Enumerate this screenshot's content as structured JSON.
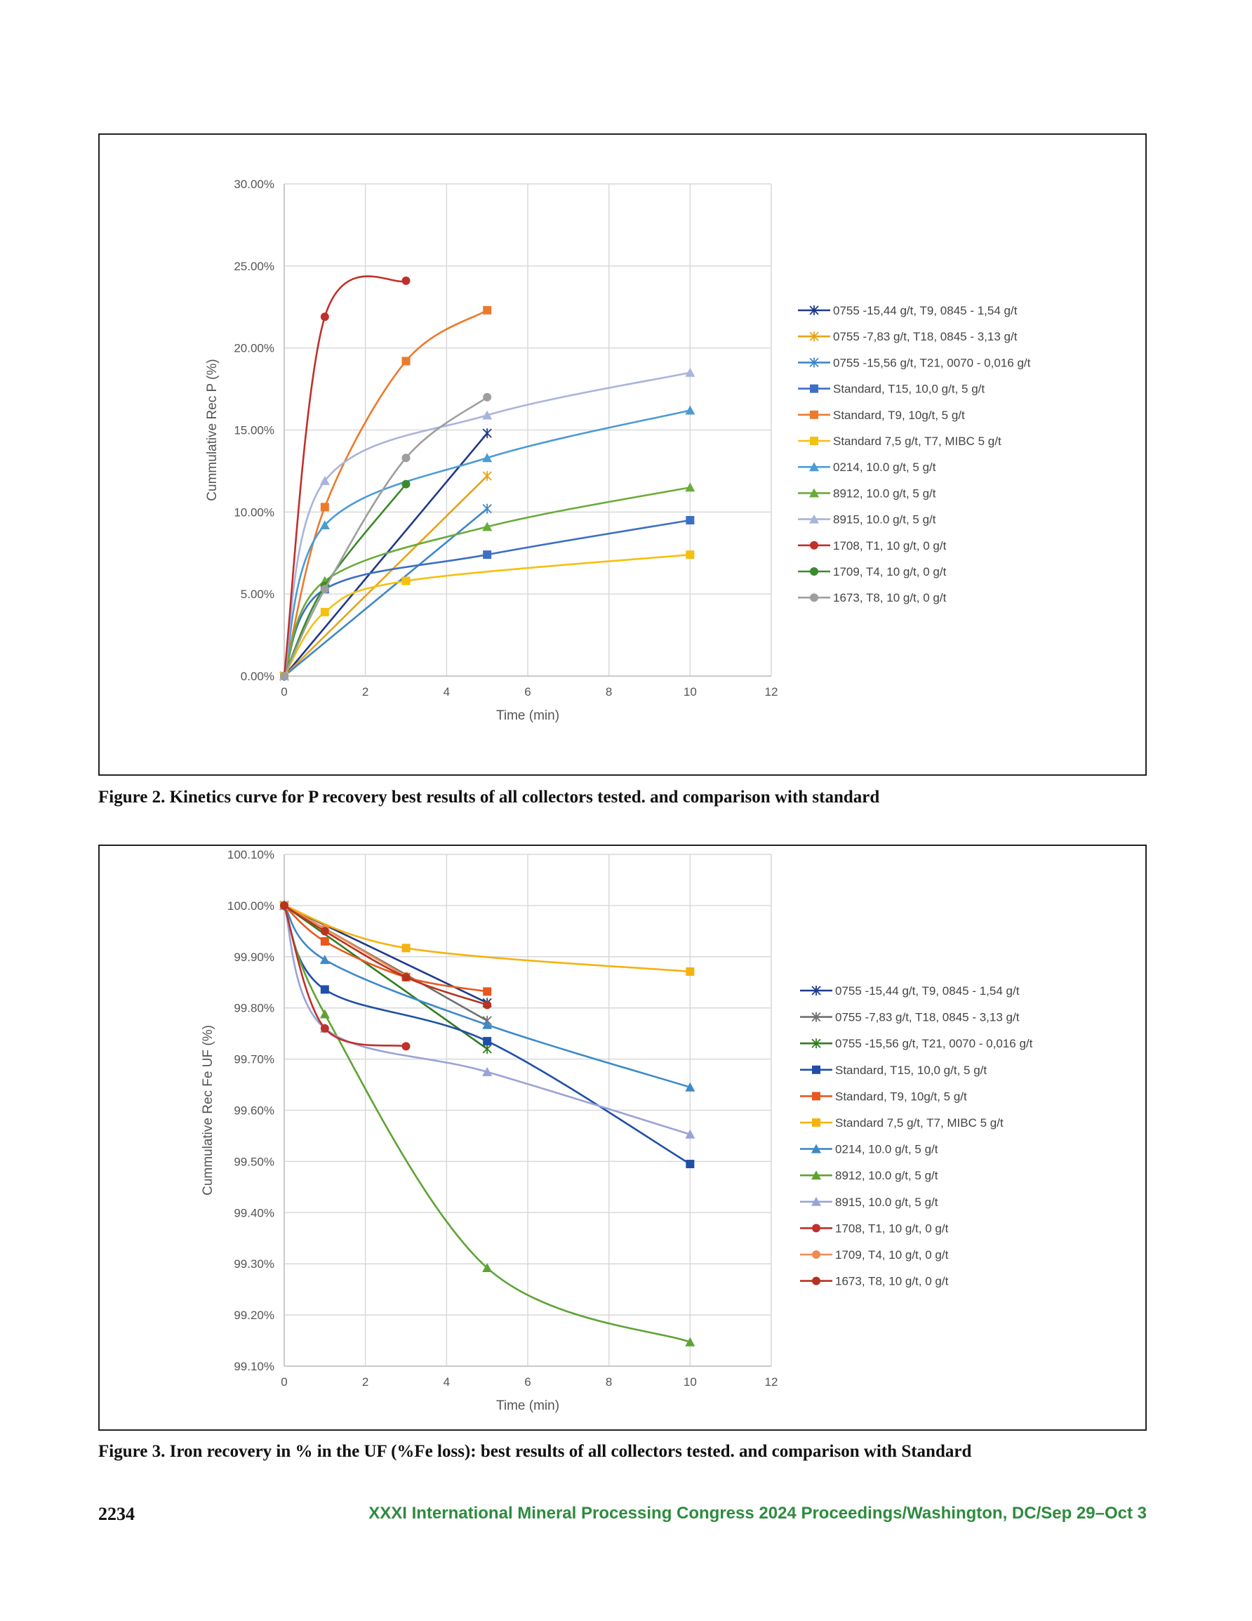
{
  "captions": {
    "fig2": "Figure 2. Kinetics curve for P recovery best results of all collectors tested. and comparison with standard",
    "fig3": "Figure 3. Iron recovery in % in the UF (%Fe loss): best results of all collectors tested. and comparison with Standard"
  },
  "footer": {
    "page_number": "2234",
    "conference": "XXXI International Mineral Processing Congress 2024 Proceedings/Washington, DC/Sep 29–Oct 3"
  },
  "chart_data": [
    {
      "type": "line",
      "xlabel": "Time (min)",
      "ylabel": "Cummulative Rec P (%)",
      "xlim": [
        0,
        12
      ],
      "ylim": [
        0,
        30
      ],
      "x_ticks": [
        0,
        2,
        4,
        6,
        8,
        10,
        12
      ],
      "y_ticks": [
        0,
        5,
        10,
        15,
        20,
        25,
        30
      ],
      "y_tick_labels": [
        "0.00%",
        "5.00%",
        "10.00%",
        "15.00%",
        "20.00%",
        "25.00%",
        "30.00%"
      ],
      "grid": true,
      "legend_position": "right",
      "series": [
        {
          "name": "0755 -15,44 g/t, T9,  0845 - 1,54 g/t",
          "color": "#1f3a8a",
          "marker": "star",
          "smooth": false,
          "points": [
            [
              0,
              0
            ],
            [
              5,
              14.8
            ]
          ]
        },
        {
          "name": "0755 -7,83 g/t, T18,  0845 - 3,13 g/t",
          "color": "#e8a317",
          "marker": "star",
          "smooth": false,
          "points": [
            [
              0,
              0
            ],
            [
              5,
              12.2
            ]
          ]
        },
        {
          "name": "0755 -15,56 g/t, T21,  0070 - 0,016 g/t",
          "color": "#3f87c8",
          "marker": "star",
          "smooth": false,
          "points": [
            [
              0,
              0
            ],
            [
              5,
              10.2
            ]
          ]
        },
        {
          "name": "Standard, T15, 10,0 g/t, 5 g/t",
          "color": "#3d6fc4",
          "marker": "square",
          "smooth": true,
          "points": [
            [
              0,
              0
            ],
            [
              1,
              5.3
            ],
            [
              5,
              7.4
            ],
            [
              10,
              9.5
            ]
          ]
        },
        {
          "name": "Standard,  T9, 10g/t, 5 g/t",
          "color": "#ec7a2c",
          "marker": "square",
          "smooth": true,
          "points": [
            [
              0,
              0
            ],
            [
              1,
              10.3
            ],
            [
              3,
              19.2
            ],
            [
              5,
              22.3
            ]
          ]
        },
        {
          "name": "Standard 7,5 g/t, T7,  MIBC 5 g/t",
          "color": "#f5c00f",
          "marker": "square",
          "smooth": true,
          "points": [
            [
              0,
              0
            ],
            [
              1,
              3.9
            ],
            [
              3,
              5.8
            ],
            [
              10,
              7.4
            ]
          ]
        },
        {
          "name": "0214, 10.0 g/t, 5 g/t",
          "color": "#4b9bd6",
          "marker": "triangle",
          "smooth": true,
          "points": [
            [
              0,
              0
            ],
            [
              1,
              9.2
            ],
            [
              5,
              13.3
            ],
            [
              10,
              16.2
            ]
          ]
        },
        {
          "name": "8912, 10.0 g/t, 5 g/t",
          "color": "#6aab3a",
          "marker": "triangle",
          "smooth": true,
          "points": [
            [
              0,
              0
            ],
            [
              1,
              5.8
            ],
            [
              5,
              9.1
            ],
            [
              10,
              11.5
            ]
          ]
        },
        {
          "name": "8915, 10.0 g/t, 5 g/t",
          "color": "#a9b4dc",
          "marker": "triangle",
          "smooth": true,
          "points": [
            [
              0,
              0
            ],
            [
              1,
              11.9
            ],
            [
              5,
              15.9
            ],
            [
              10,
              18.5
            ]
          ]
        },
        {
          "name": "1708, T1, 10 g/t, 0 g/t",
          "color": "#c0302c",
          "marker": "circle",
          "smooth": true,
          "points": [
            [
              0,
              0
            ],
            [
              1,
              21.9
            ],
            [
              3,
              24.1
            ]
          ]
        },
        {
          "name": "1709, T4, 10 g/t, 0 g/t",
          "color": "#3c8a2c",
          "marker": "circle",
          "smooth": true,
          "points": [
            [
              0,
              0
            ],
            [
              1,
              5.5
            ],
            [
              3,
              11.7
            ]
          ]
        },
        {
          "name": "1673, T8, 10 g/t, 0 g/t",
          "color": "#9e9e9e",
          "marker": "circle",
          "smooth": true,
          "points": [
            [
              0,
              0
            ],
            [
              1,
              5.3
            ],
            [
              3,
              13.3
            ],
            [
              5,
              17.0
            ]
          ]
        }
      ]
    },
    {
      "type": "line",
      "xlabel": "Time (min)",
      "ylabel": "Cummulative Rec Fe UF (%)",
      "xlim": [
        0,
        12
      ],
      "ylim": [
        99.1,
        100.1
      ],
      "x_ticks": [
        0,
        2,
        4,
        6,
        8,
        10,
        12
      ],
      "y_ticks": [
        99.1,
        99.2,
        99.3,
        99.4,
        99.5,
        99.6,
        99.7,
        99.8,
        99.9,
        100.0,
        100.1
      ],
      "y_tick_labels": [
        "99.10%",
        "99.20%",
        "99.30%",
        "99.40%",
        "99.50%",
        "99.60%",
        "99.70%",
        "99.80%",
        "99.90%",
        "100.00%",
        "100.10%"
      ],
      "grid": true,
      "legend_position": "right",
      "series": [
        {
          "name": "0755 -15,44 g/t, T9,  0845 - 1,54 g/t",
          "color": "#1f3a8a",
          "marker": "star",
          "smooth": false,
          "points": [
            [
              0,
              100.0
            ],
            [
              5,
              99.81
            ]
          ]
        },
        {
          "name": "0755 -7,83 g/t, T18,  0845 - 3,13 g/t",
          "color": "#707070",
          "marker": "star",
          "smooth": false,
          "points": [
            [
              0,
              100.0
            ],
            [
              5,
              99.775
            ]
          ]
        },
        {
          "name": "0755 -15,56 g/t, T21,  0070 - 0,016 g/t",
          "color": "#2f7d1f",
          "marker": "star",
          "smooth": false,
          "points": [
            [
              0,
              100.0
            ],
            [
              5,
              99.72
            ]
          ]
        },
        {
          "name": "Standard, T15, 10,0 g/t, 5 g/t",
          "color": "#1f4fa8",
          "marker": "square",
          "smooth": true,
          "points": [
            [
              0,
              100.0
            ],
            [
              1,
              99.836
            ],
            [
              5,
              99.735
            ],
            [
              10,
              99.495
            ]
          ]
        },
        {
          "name": "Standard,  T9, 10g/t, 5 g/t",
          "color": "#e8571f",
          "marker": "square",
          "smooth": true,
          "points": [
            [
              0,
              100.0
            ],
            [
              1,
              99.93
            ],
            [
              3,
              99.86
            ],
            [
              5,
              99.832
            ]
          ]
        },
        {
          "name": "Standard 7,5 g/t, T7,  MIBC 5 g/t",
          "color": "#f5b20f",
          "marker": "square",
          "smooth": true,
          "points": [
            [
              0,
              100.0
            ],
            [
              3,
              99.917
            ],
            [
              10,
              99.871
            ]
          ]
        },
        {
          "name": "0214, 10.0 g/t, 5 g/t",
          "color": "#3d8ac8",
          "marker": "triangle",
          "smooth": true,
          "points": [
            [
              0,
              100.0
            ],
            [
              1,
              99.894
            ],
            [
              5,
              99.767
            ],
            [
              10,
              99.645
            ]
          ]
        },
        {
          "name": "8912, 10.0 g/t, 5 g/t",
          "color": "#5ea332",
          "marker": "triangle",
          "smooth": true,
          "points": [
            [
              0,
              100.0
            ],
            [
              1,
              99.788
            ],
            [
              5,
              99.292
            ],
            [
              10,
              99.147
            ]
          ]
        },
        {
          "name": "8915, 10.0 g/t, 5 g/t",
          "color": "#9aa3d6",
          "marker": "triangle",
          "smooth": true,
          "points": [
            [
              0,
              100.0
            ],
            [
              1,
              99.76
            ],
            [
              5,
              99.675
            ],
            [
              10,
              99.553
            ]
          ]
        },
        {
          "name": "1708, T1, 10 g/t, 0 g/t",
          "color": "#c0302c",
          "marker": "circle",
          "smooth": true,
          "points": [
            [
              0,
              100.0
            ],
            [
              1,
              99.76
            ],
            [
              3,
              99.725
            ]
          ]
        },
        {
          "name": "1709, T4, 10 g/t, 0 g/t",
          "color": "#f08a52",
          "marker": "circle",
          "smooth": true,
          "points": [
            [
              0,
              100.0
            ],
            [
              1,
              99.955
            ],
            [
              3,
              99.862
            ]
          ]
        },
        {
          "name": "1673, T8, 10 g/t, 0 g/t",
          "color": "#b5341f",
          "marker": "circle",
          "smooth": true,
          "points": [
            [
              0,
              100.0
            ],
            [
              1,
              99.95
            ],
            [
              3,
              99.86
            ],
            [
              5,
              99.806
            ]
          ]
        }
      ]
    }
  ]
}
